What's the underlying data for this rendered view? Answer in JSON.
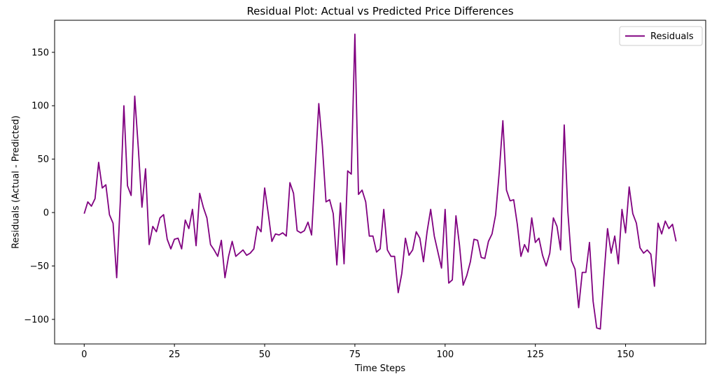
{
  "chart_data": {
    "type": "line",
    "title": "Residual Plot: Actual vs Predicted Price Differences",
    "xlabel": "Time Steps",
    "ylabel": "Residuals (Actual - Predicted)",
    "xlim": [
      -8.2,
      172.2
    ],
    "ylim": [
      -123,
      180
    ],
    "xticks": [
      0,
      25,
      50,
      75,
      100,
      125,
      150
    ],
    "xtick_labels": [
      "0",
      "25",
      "50",
      "75",
      "100",
      "125",
      "150"
    ],
    "yticks": [
      -100,
      -50,
      0,
      50,
      100,
      150
    ],
    "ytick_labels": [
      "−100",
      "−50",
      "0",
      "50",
      "100",
      "150"
    ],
    "grid": false,
    "legend_position": "top-right",
    "series": [
      {
        "name": "Residuals",
        "color": "#800080",
        "x": [
          0,
          1,
          2,
          3,
          4,
          5,
          6,
          7,
          8,
          9,
          10,
          11,
          12,
          13,
          14,
          15,
          16,
          17,
          18,
          19,
          20,
          21,
          22,
          23,
          24,
          25,
          26,
          27,
          28,
          29,
          30,
          31,
          32,
          33,
          34,
          35,
          36,
          37,
          38,
          39,
          40,
          41,
          42,
          43,
          44,
          45,
          46,
          47,
          48,
          49,
          50,
          51,
          52,
          53,
          54,
          55,
          56,
          57,
          58,
          59,
          60,
          61,
          62,
          63,
          64,
          65,
          66,
          67,
          68,
          69,
          70,
          71,
          72,
          73,
          74,
          75,
          76,
          77,
          78,
          79,
          80,
          81,
          82,
          83,
          84,
          85,
          86,
          87,
          88,
          89,
          90,
          91,
          92,
          93,
          94,
          95,
          96,
          97,
          98,
          99,
          100,
          101,
          102,
          103,
          104,
          105,
          106,
          107,
          108,
          109,
          110,
          111,
          112,
          113,
          114,
          115,
          116,
          117,
          118,
          119,
          120,
          121,
          122,
          123,
          124,
          125,
          126,
          127,
          128,
          129,
          130,
          131,
          132,
          133,
          134,
          135,
          136,
          137,
          138,
          139,
          140,
          141,
          142,
          143,
          144,
          145,
          146,
          147,
          148,
          149,
          150,
          151,
          152,
          153,
          154,
          155,
          156,
          157,
          158,
          159,
          160,
          161,
          162,
          163,
          164
        ],
        "y": [
          -1,
          10,
          6,
          13,
          47,
          23,
          26,
          -2,
          -10,
          -61,
          10,
          100,
          25,
          16,
          109,
          60,
          5,
          41,
          -30,
          -13,
          -18,
          -5,
          -2,
          -25,
          -34,
          -25,
          -24,
          -34,
          -7,
          -15,
          3,
          -31,
          18,
          5,
          -5,
          -30,
          -35,
          -41,
          -26,
          -61,
          -41,
          -27,
          -41,
          -38,
          -35,
          -40,
          -38,
          -34,
          -13,
          -18,
          23,
          -1,
          -27,
          -20,
          -21,
          -19,
          -22,
          28,
          18,
          -17,
          -19,
          -17,
          -9,
          -21,
          40,
          102,
          62,
          10,
          12,
          -1,
          -49,
          9,
          -48,
          39,
          36,
          167,
          17,
          21,
          10,
          -22,
          -22,
          -37,
          -34,
          3,
          -35,
          -41,
          -41,
          -75,
          -57,
          -24,
          -40,
          -35,
          -18,
          -24,
          -46,
          -18,
          3,
          -22,
          -37,
          -52,
          3,
          -66,
          -63,
          -3,
          -31,
          -68,
          -59,
          -46,
          -25,
          -26,
          -42,
          -43,
          -27,
          -20,
          -2,
          38,
          86,
          21,
          11,
          12,
          -11,
          -41,
          -30,
          -37,
          -5,
          -28,
          -24,
          -40,
          -50,
          -38,
          -5,
          -13,
          -35,
          82,
          1,
          -45,
          -53,
          -89,
          -56,
          -56,
          -28,
          -83,
          -108,
          -109,
          -60,
          -15,
          -38,
          -22,
          -48,
          3,
          -19,
          24,
          -1,
          -10,
          -33,
          -38,
          -35,
          -39,
          -69,
          -10,
          -20,
          -8,
          -15,
          -11,
          -27
        ]
      }
    ]
  }
}
